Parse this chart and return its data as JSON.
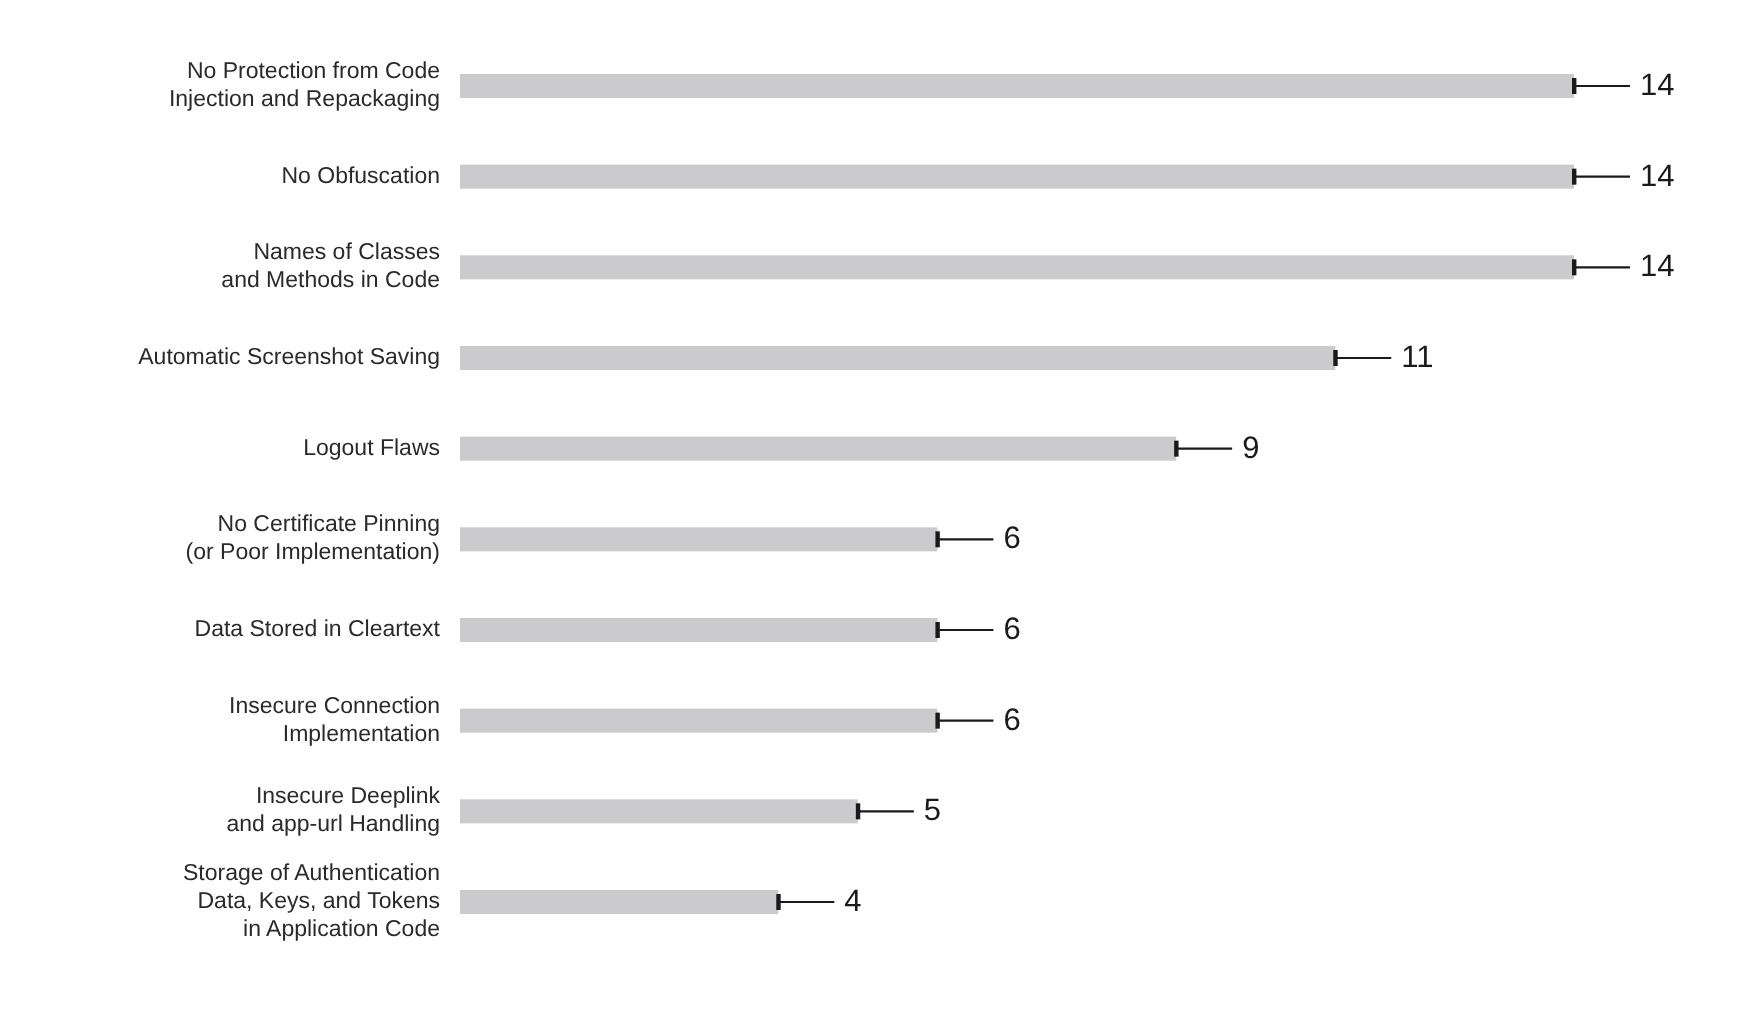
{
  "chart_data": {
    "type": "bar",
    "orientation": "horizontal",
    "categories": [
      "No Protection from Code\nInjection and Repackaging",
      "No Obfuscation",
      "Names of Classes\nand Methods in Code",
      "Automatic Screenshot Saving",
      "Logout Flaws",
      "No Certificate Pinning\n(or Poor Implementation)",
      "Data Stored in Cleartext",
      "Insecure Connection\nImplementation",
      "Insecure Deeplink\nand app-url Handling",
      "Storage of Authentication\nData, Keys, and Tokens\nin Application Code"
    ],
    "values": [
      14,
      14,
      14,
      11,
      9,
      6,
      6,
      6,
      5,
      4
    ],
    "color": "#cbcacc",
    "data_labels": true
  }
}
